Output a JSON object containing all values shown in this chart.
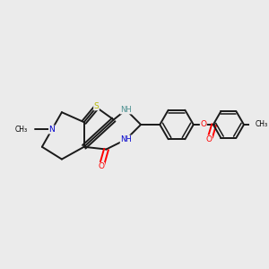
{
  "background_color": "#ebebeb",
  "figsize": [
    3.0,
    3.0
  ],
  "dpi": 100,
  "atom_colors": {
    "S": "#b8b800",
    "N": "#0000cc",
    "O": "#ff0000",
    "C": "#000000",
    "NH": "#4a8f8f"
  },
  "bond_color": "#1a1a1a",
  "bond_width": 1.4,
  "font_size_atom": 6.5
}
